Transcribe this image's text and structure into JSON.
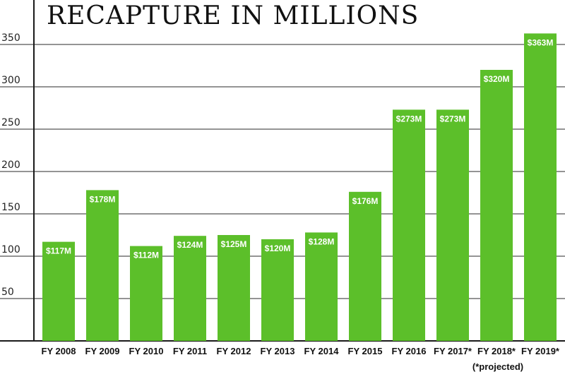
{
  "chart_data": {
    "type": "bar",
    "title": "RECAPTURE IN MILLIONS",
    "categories": [
      "FY 2008",
      "FY 2009",
      "FY 2010",
      "FY 2011",
      "FY 2012",
      "FY 2013",
      "FY 2014",
      "FY 2015",
      "FY 2016",
      "FY 2017*",
      "FY 2018*",
      "FY 2019*"
    ],
    "values": [
      117,
      178,
      112,
      124,
      125,
      120,
      128,
      176,
      273,
      273,
      320,
      363
    ],
    "data_labels": [
      "$117M",
      "$178M",
      "$112M",
      "$124M",
      "$125M",
      "$120M",
      "$128M",
      "$176M",
      "$273M",
      "$273M",
      "$320M",
      "$363M"
    ],
    "yticks": [
      50,
      100,
      150,
      200,
      250,
      300,
      350
    ],
    "ylim": [
      0,
      375
    ],
    "grid": true,
    "note": "(*projected)",
    "bar_color": "#5cbf2a"
  }
}
